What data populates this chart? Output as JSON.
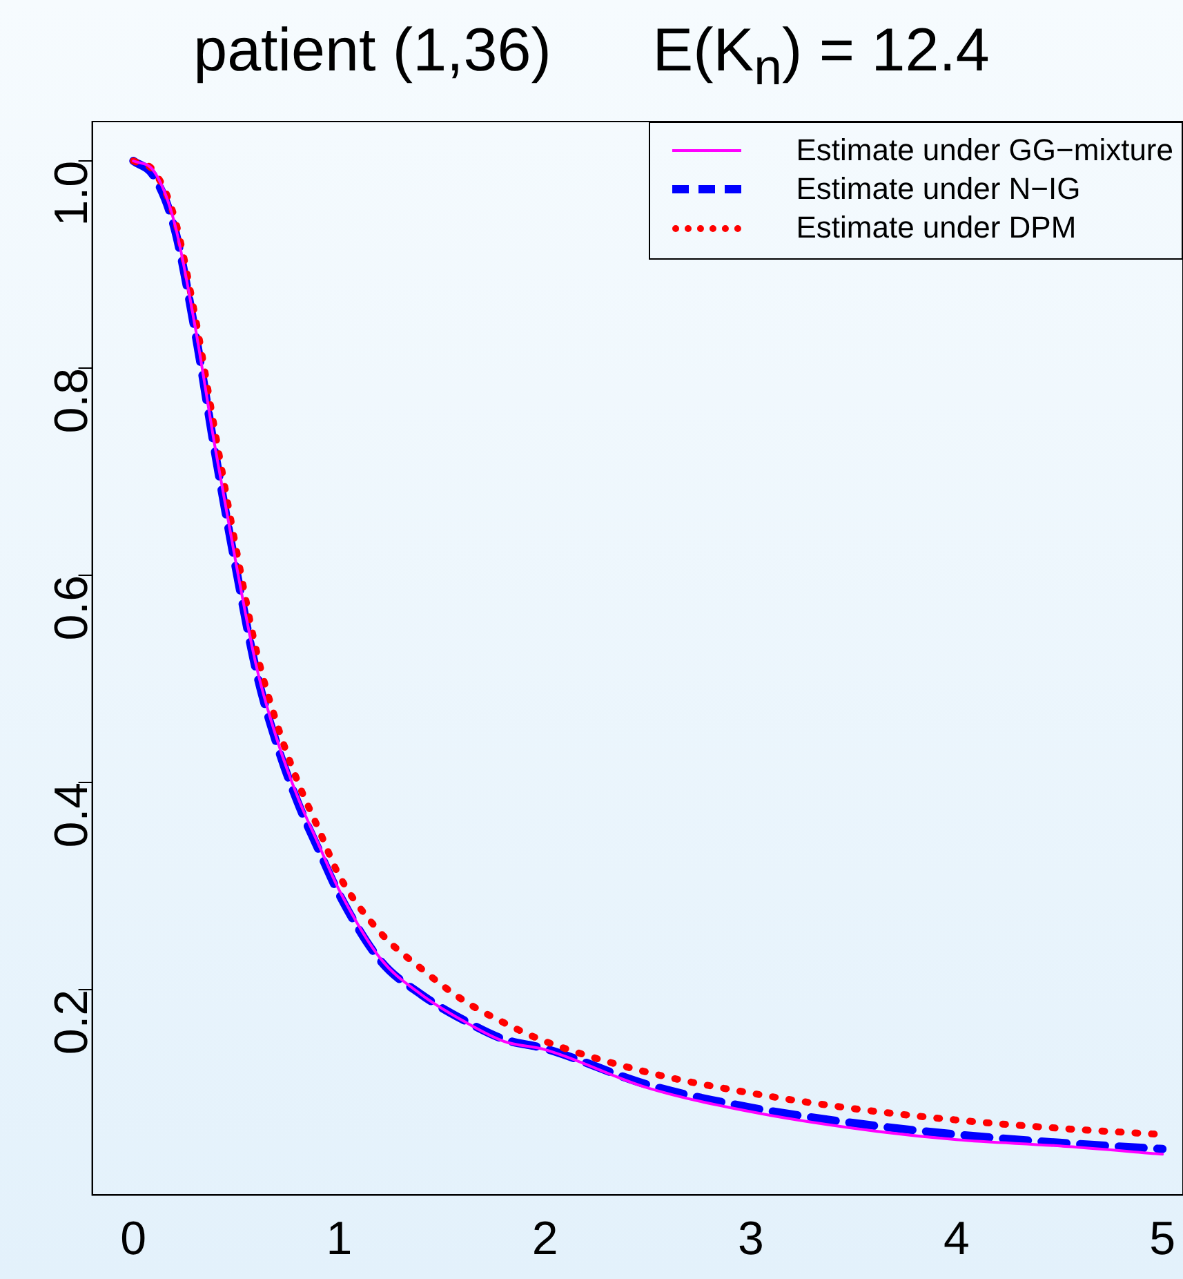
{
  "chart_data": {
    "type": "line",
    "title": "patient (1,36)      E(K$_{n}$) = 12.4",
    "x": [
      0,
      0.1,
      0.2,
      0.3,
      0.4,
      0.5,
      0.6,
      0.7,
      0.8,
      0.9,
      1.0,
      1.2,
      1.4,
      1.6,
      1.8,
      2.0,
      2.5,
      3.0,
      3.5,
      4.0,
      4.5,
      5.0
    ],
    "series": [
      {
        "name": "Estimate under GG−mixture",
        "color": "#ff00ff",
        "line_style": "solid",
        "values": [
          1.0,
          0.99,
          0.94,
          0.84,
          0.72,
          0.61,
          0.51,
          0.44,
          0.385,
          0.34,
          0.296,
          0.23,
          0.195,
          0.17,
          0.15,
          0.142,
          0.105,
          0.082,
          0.066,
          0.055,
          0.049,
          0.041
        ]
      },
      {
        "name": "Estimate under N−IG",
        "color": "#0000ff",
        "line_style": "dashed",
        "values": [
          1.0,
          0.985,
          0.935,
          0.835,
          0.715,
          0.605,
          0.505,
          0.435,
          0.38,
          0.335,
          0.292,
          0.228,
          0.195,
          0.171,
          0.152,
          0.143,
          0.108,
          0.086,
          0.071,
          0.06,
          0.052,
          0.046
        ]
      },
      {
        "name": "Estimate under DPM",
        "color": "#ff0000",
        "line_style": "dotted",
        "values": [
          1.0,
          0.99,
          0.945,
          0.85,
          0.735,
          0.625,
          0.525,
          0.455,
          0.4,
          0.355,
          0.31,
          0.255,
          0.22,
          0.19,
          0.168,
          0.15,
          0.12,
          0.1,
          0.085,
          0.074,
          0.066,
          0.06
        ]
      }
    ],
    "xlim": [
      -0.2,
      5.1
    ],
    "xticks": [
      0,
      1,
      2,
      3,
      4,
      5
    ],
    "ylim": [
      0.0016,
      1.038
    ],
    "yticks": [
      0.2,
      0.4,
      0.6,
      0.8,
      {
        "value": 1.0,
        "label": "1.0"
      }
    ],
    "grid": false,
    "legend": "top right",
    "marker": "none"
  }
}
